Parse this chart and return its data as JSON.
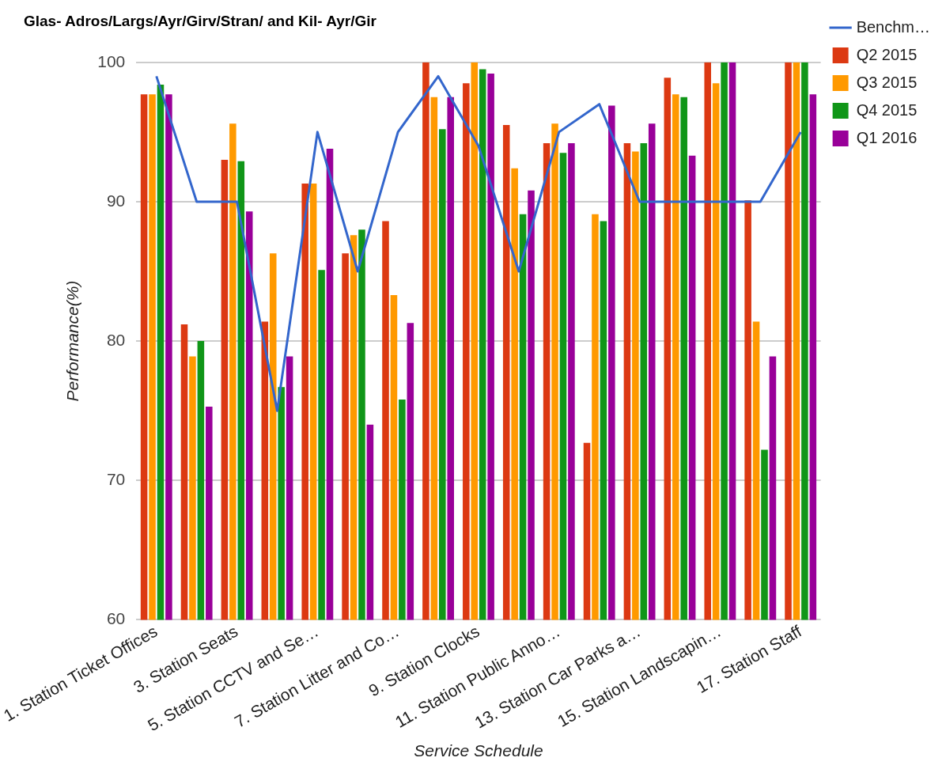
{
  "chart_data": {
    "type": "bar",
    "title": "Glas- Adros/Largs/Ayr/Girv/Stran/ and Kil- Ayr/Gir",
    "xlabel": "Service Schedule",
    "ylabel": "Performance(%)",
    "categories": [
      "1. Station Ticket Offices",
      null,
      "3. Station Seats",
      null,
      "5. Station CCTV and Se…",
      null,
      "7. Station Litter and Co…",
      null,
      "9. Station Clocks",
      null,
      "11. Station Public Anno…",
      null,
      "13. Station Car Parks a…",
      null,
      "15. Station Landscapin…",
      null,
      "17. Station Staff"
    ],
    "series": [
      {
        "name": "Benchm…",
        "type": "line",
        "color": "#3366cc",
        "values": [
          99,
          90,
          90,
          75,
          95,
          85,
          95,
          99,
          94,
          85,
          95,
          97,
          90,
          90,
          90,
          90,
          95
        ]
      },
      {
        "name": "Q2 2015",
        "color": "#dc3912",
        "values": [
          97.7,
          81.2,
          93,
          81.4,
          91.3,
          86.3,
          88.6,
          100,
          98.5,
          95.5,
          94.2,
          72.7,
          94.2,
          98.9,
          100,
          90.1,
          100
        ]
      },
      {
        "name": "Q3 2015",
        "color": "#ff9900",
        "values": [
          97.7,
          78.9,
          95.6,
          86.3,
          91.3,
          87.6,
          83.3,
          97.5,
          100,
          92.4,
          95.6,
          89.1,
          93.6,
          97.7,
          98.5,
          81.4,
          100
        ]
      },
      {
        "name": "Q4 2015",
        "color": "#109618",
        "values": [
          98.4,
          80,
          92.9,
          76.7,
          85.1,
          88,
          75.8,
          95.2,
          99.5,
          89.1,
          93.5,
          88.6,
          94.2,
          97.5,
          100,
          72.2,
          100
        ]
      },
      {
        "name": "Q1 2016",
        "color": "#990099",
        "values": [
          97.7,
          75.3,
          89.3,
          78.9,
          93.8,
          74,
          81.3,
          97.5,
          99.2,
          90.8,
          94.2,
          96.9,
          95.6,
          93.3,
          100,
          78.9,
          97.7
        ]
      }
    ],
    "ylim": [
      60,
      100
    ],
    "yticks": [
      60,
      70,
      80,
      90,
      100
    ],
    "grid": "y",
    "legend": "right",
    "marker": "none",
    "line_style": "solid"
  }
}
